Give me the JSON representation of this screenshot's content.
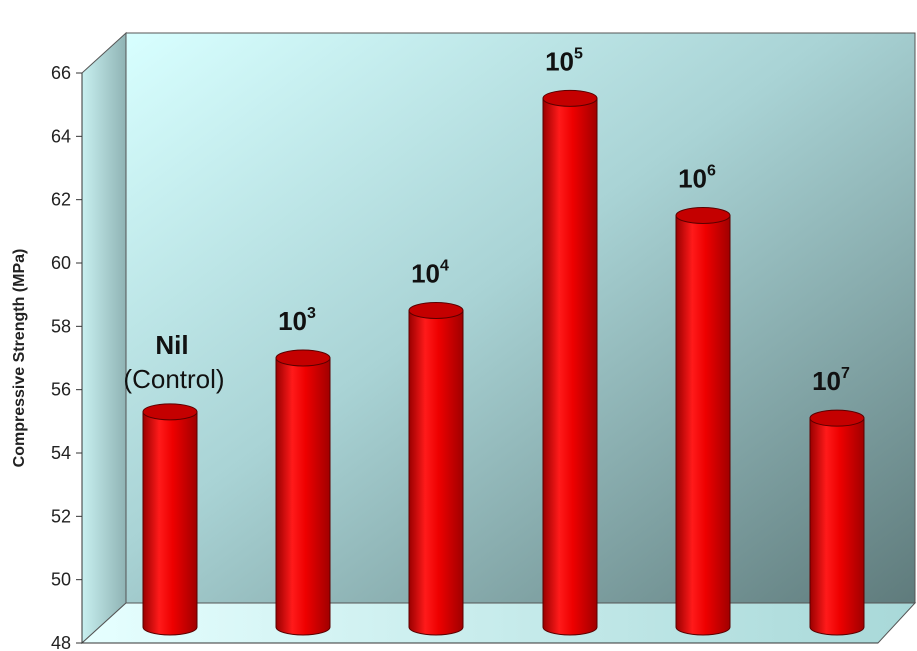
{
  "chart_data": {
    "type": "bar",
    "style": "3d-cylinder",
    "ylabel": "Compressive Strength (MPa)",
    "ylim": [
      48,
      66
    ],
    "yticks": [
      48,
      50,
      52,
      54,
      56,
      58,
      60,
      62,
      64,
      66
    ],
    "grid": false,
    "legend": "none",
    "bars": [
      {
        "label": "Nil",
        "sub": "(Control)",
        "value": 55.3
      },
      {
        "label": "10",
        "sup": "3",
        "value": 57.0
      },
      {
        "label": "10",
        "sup": "4",
        "value": 58.5
      },
      {
        "label": "10",
        "sup": "5",
        "value": 65.2
      },
      {
        "label": "10",
        "sup": "6",
        "value": 61.5
      },
      {
        "label": "10",
        "sup": "7",
        "value": 55.1
      }
    ],
    "colors": {
      "bar": "#e60000",
      "bar_dark": "#a80000",
      "bar_top": "#c40000",
      "wall_light": "#d8ffff",
      "wall_dark": "#6f8b8b",
      "floor": "#bff0f0"
    }
  }
}
